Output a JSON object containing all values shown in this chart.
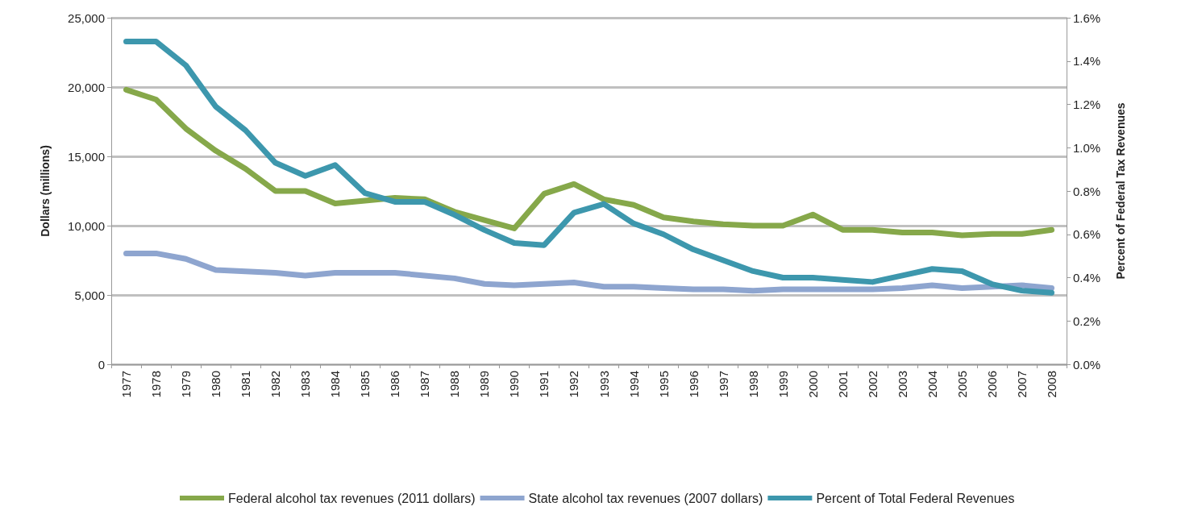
{
  "chart_data": {
    "type": "line",
    "categories": [
      "1977",
      "1978",
      "1979",
      "1980",
      "1981",
      "1982",
      "1983",
      "1984",
      "1985",
      "1986",
      "1987",
      "1988",
      "1989",
      "1990",
      "1991",
      "1992",
      "1993",
      "1994",
      "1995",
      "1996",
      "1997",
      "1998",
      "1999",
      "2000",
      "2001",
      "2002",
      "2003",
      "2004",
      "2005",
      "2006",
      "2007",
      "2008"
    ],
    "series": [
      {
        "name": "Federal alcohol tax revenues (2011 dollars)",
        "color": "#86a84a",
        "values": [
          19800,
          19100,
          17000,
          15400,
          14100,
          12500,
          12500,
          11600,
          11800,
          12000,
          11900,
          11000,
          10400,
          9800,
          12300,
          13000,
          11900,
          11500,
          10600,
          10300,
          10100,
          10000,
          10000,
          10800,
          9700,
          9700,
          9500,
          9500,
          9300,
          9400,
          9400,
          9700
        ]
      },
      {
        "name": "State alcohol tax revenues (2007 dollars)",
        "color": "#8ea5cf",
        "values": [
          8000,
          8000,
          7600,
          6800,
          6700,
          6600,
          6400,
          6600,
          6600,
          6600,
          6400,
          6200,
          5800,
          5700,
          5800,
          5900,
          5600,
          5600,
          5500,
          5400,
          5400,
          5300,
          5400,
          5400,
          5400,
          5400,
          5500,
          5700,
          5500,
          5600,
          5700,
          5500
        ]
      },
      {
        "name": "Percent of Total Federal Revenues",
        "color": "#3d97ad",
        "axis": "y2",
        "values": [
          1.49,
          1.49,
          1.38,
          1.19,
          1.08,
          0.93,
          0.87,
          0.92,
          0.79,
          0.75,
          0.75,
          0.69,
          0.62,
          0.56,
          0.55,
          0.7,
          0.74,
          0.65,
          0.6,
          0.53,
          0.48,
          0.43,
          0.4,
          0.4,
          0.39,
          0.38,
          0.41,
          0.44,
          0.43,
          0.37,
          0.34,
          0.33
        ]
      }
    ],
    "ylabel": "Dollars (millions)",
    "y2label": "Percent of Federal Tax Revenues",
    "ylim": [
      0,
      25000
    ],
    "yticks": [
      {
        "value": 0,
        "label": "0"
      },
      {
        "value": 5000,
        "label": "5,000"
      },
      {
        "value": 10000,
        "label": "10,000"
      },
      {
        "value": 15000,
        "label": "15,000"
      },
      {
        "value": 20000,
        "label": "20,000"
      },
      {
        "value": 25000,
        "label": "25,000"
      }
    ],
    "y2lim": [
      0,
      1.6
    ],
    "y2ticks": [
      {
        "value": 0,
        "label": "0.0%"
      },
      {
        "value": 0.2,
        "label": "0.2%"
      },
      {
        "value": 0.4,
        "label": "0.4%"
      },
      {
        "value": 0.6,
        "label": "0.6%"
      },
      {
        "value": 0.8,
        "label": "0.8%"
      },
      {
        "value": 1.0,
        "label": "1.0%"
      },
      {
        "value": 1.2,
        "label": "1.2%"
      },
      {
        "value": 1.4,
        "label": "1.4%"
      },
      {
        "value": 1.6,
        "label": "1.6%"
      }
    ],
    "grid": "y",
    "legend": "bottom",
    "marker": "none",
    "line_style": "solid"
  }
}
